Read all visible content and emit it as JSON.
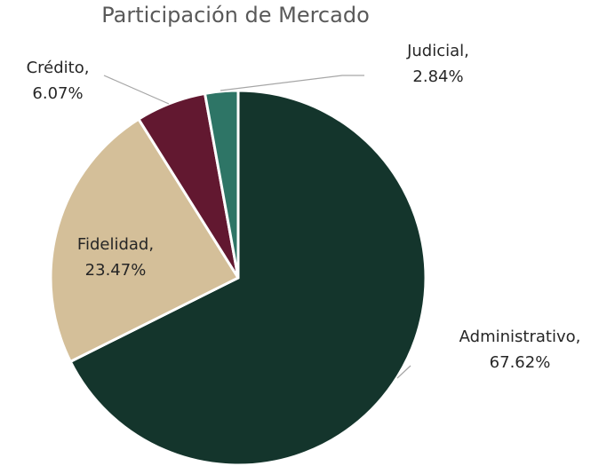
{
  "chart_data": {
    "type": "pie",
    "title": "Participación de Mercado",
    "categories": [
      "Administrativo,",
      "Fidelidad,",
      "Crédito,",
      "Judicial,"
    ],
    "values": [
      67.62,
      23.47,
      6.07,
      2.84
    ],
    "value_labels": [
      "67.62%",
      "23.47%",
      "6.07%",
      "2.84%"
    ],
    "colors": [
      "#14352c",
      "#d4bf99",
      "#621830",
      "#2e7566"
    ]
  }
}
